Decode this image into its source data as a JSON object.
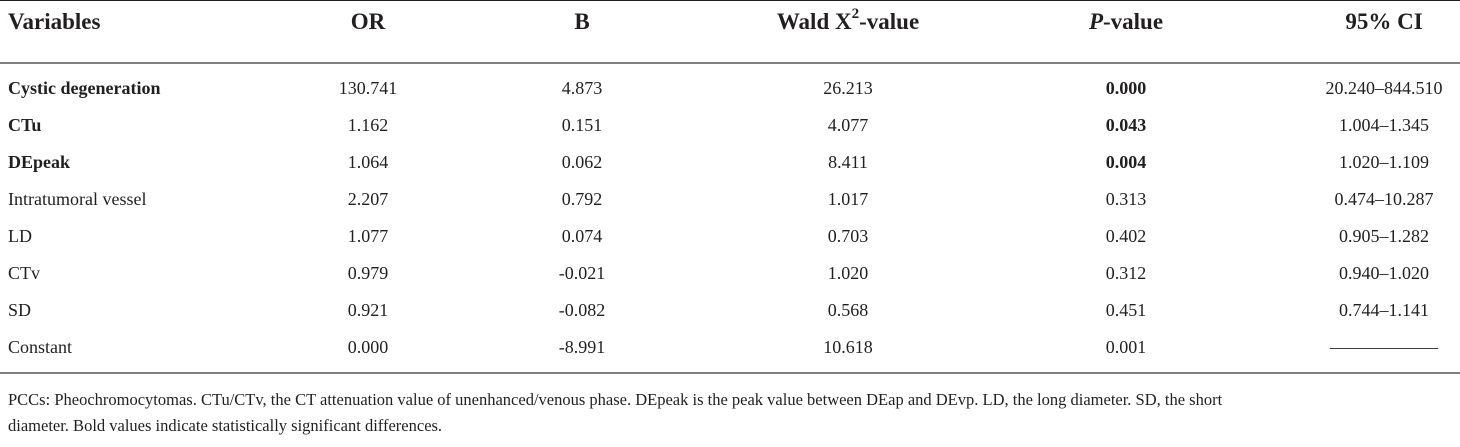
{
  "table": {
    "headers": {
      "variables": "Variables",
      "or": "OR",
      "b": "B",
      "wald_prefix": "Wald X",
      "wald_sup": "2",
      "wald_suffix": "-value",
      "p_italic": "P",
      "p_suffix": "-value",
      "ci": "95% CI"
    },
    "rows": [
      {
        "variable": "Cystic degeneration",
        "or": "130.741",
        "b": "4.873",
        "wald": "26.213",
        "p": "0.000",
        "ci": "20.240–844.510",
        "bold_name": true,
        "bold_p": true
      },
      {
        "variable": "CTu",
        "or": "1.162",
        "b": "0.151",
        "wald": "4.077",
        "p": "0.043",
        "ci": "1.004–1.345",
        "bold_name": true,
        "bold_p": true
      },
      {
        "variable": "DEpeak",
        "or": "1.064",
        "b": "0.062",
        "wald": "8.411",
        "p": "0.004",
        "ci": "1.020–1.109",
        "bold_name": true,
        "bold_p": true
      },
      {
        "variable": "Intratumoral vessel",
        "or": "2.207",
        "b": "0.792",
        "wald": "1.017",
        "p": "0.313",
        "ci": "0.474–10.287",
        "bold_name": false,
        "bold_p": false
      },
      {
        "variable": "LD",
        "or": "1.077",
        "b": "0.074",
        "wald": "0.703",
        "p": "0.402",
        "ci": "0.905–1.282",
        "bold_name": false,
        "bold_p": false
      },
      {
        "variable": "CTv",
        "or": "0.979",
        "b": "-0.021",
        "wald": "1.020",
        "p": "0.312",
        "ci": "0.940–1.020",
        "bold_name": false,
        "bold_p": false
      },
      {
        "variable": "SD",
        "or": "0.921",
        "b": "-0.082",
        "wald": "0.568",
        "p": "0.451",
        "ci": "0.744–1.141",
        "bold_name": false,
        "bold_p": false
      },
      {
        "variable": "Constant",
        "or": "0.000",
        "b": "-8.991",
        "wald": "10.618",
        "p": "0.001",
        "ci": "——————",
        "bold_name": false,
        "bold_p": false
      }
    ]
  },
  "footnote": {
    "line1": "PCCs: Pheochromocytomas. CTu/CTv, the CT attenuation value of unenhanced/venous phase. DEpeak is the peak value between DEap and DEvp. LD, the long diameter. SD, the short",
    "line2": "diameter. Bold values indicate statistically significant differences."
  }
}
